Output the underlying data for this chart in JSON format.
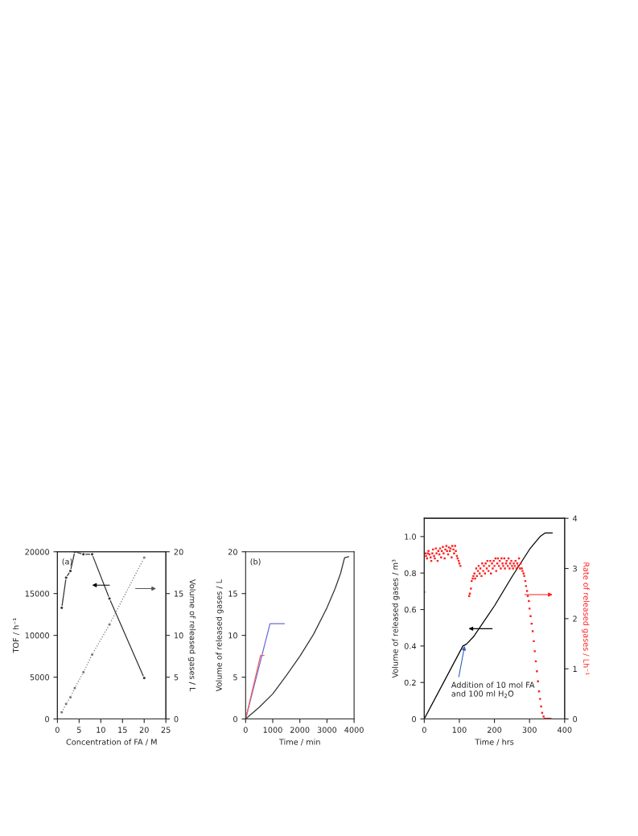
{
  "chart_data": [
    {
      "type": "line",
      "annotations": [
        "(a)"
      ],
      "xlabel": "Concentration of FA / M",
      "ylabel": "TOF / h⁻¹",
      "y2label": "Volume of released gases / L",
      "xlim": [
        0,
        25
      ],
      "xticks": [
        0,
        5,
        10,
        15,
        20,
        25
      ],
      "ylim": [
        0,
        20000
      ],
      "yticks": [
        0,
        5000,
        10000,
        15000,
        20000
      ],
      "y2lim": [
        0,
        20
      ],
      "y2ticks": [
        0,
        5,
        10,
        15,
        20
      ],
      "grid": false,
      "legend": false,
      "series": [
        {
          "x": [
            1,
            2,
            3,
            4,
            6,
            8,
            12,
            20
          ],
          "values": [
            13300,
            16900,
            17700,
            20000,
            19700,
            19700,
            14400,
            4900
          ],
          "color": "#333333",
          "marker": "circle",
          "line_style": "solid"
        },
        {
          "x": [
            1,
            2,
            3,
            4,
            6,
            8,
            12,
            20
          ],
          "values": [
            0.8,
            1.8,
            2.6,
            3.7,
            5.6,
            7.7,
            11.3,
            19.3
          ],
          "color": "#777777",
          "marker": "circle",
          "line_style": "dotted",
          "axis": "y2"
        }
      ]
    },
    {
      "type": "line",
      "annotations": [
        "(b)"
      ],
      "xlabel": "Time / min",
      "ylabel": "Volume of released gases / L",
      "xlim": [
        0,
        4000
      ],
      "xticks": [
        0,
        1000,
        2000,
        3000,
        4000
      ],
      "ylim": [
        0,
        20
      ],
      "yticks": [
        0,
        5,
        10,
        15,
        20
      ],
      "grid": false,
      "legend": false,
      "series": [
        {
          "x": [
            0,
            500,
            1000,
            1500,
            2000,
            2500,
            3000,
            3300,
            3500,
            3650,
            3800
          ],
          "values": [
            0,
            1.4,
            3.0,
            5.2,
            7.5,
            10.1,
            13.3,
            15.6,
            17.4,
            19.3,
            19.4
          ],
          "color": "#333333"
        },
        {
          "x": [
            0,
            900,
            1430
          ],
          "values": [
            0,
            11.4,
            11.4
          ],
          "color": "#6a6ad8"
        },
        {
          "x": [
            0,
            550,
            680
          ],
          "values": [
            0,
            7.6,
            7.6
          ],
          "color": "#f06060"
        }
      ]
    },
    {
      "type": "line",
      "annotations": [
        {
          "text": "Addition of 10 mol FA\nand 100 ml H$_{2}$O",
          "x": 115,
          "y": 0.4
        }
      ],
      "xlabel": "Time / hrs",
      "ylabel": "Volume of released gases / m³",
      "y2label": "Rate of released gases / Lh⁻¹",
      "xlim": [
        0,
        400
      ],
      "xticks": [
        0,
        100,
        200,
        300,
        400
      ],
      "ylim": [
        0,
        1.1
      ],
      "yticks": [
        0,
        0.2,
        0.4,
        0.6,
        0.8,
        {
          "value": 1.0,
          "label": "1.0"
        }
      ],
      "y2lim": [
        0,
        4
      ],
      "y2ticks": [
        0,
        1,
        2,
        3,
        4
      ],
      "grid": false,
      "legend": false,
      "series": [
        {
          "x": [
            0,
            110,
            120,
            140,
            200,
            250,
            300,
            330,
            345,
            365
          ],
          "values": [
            0,
            0.4,
            0.41,
            0.45,
            0.62,
            0.78,
            0.93,
            1.0,
            1.02,
            1.02
          ],
          "color": "#000000"
        },
        {
          "type": "scatter",
          "axis": "y2",
          "color": "#ff2020",
          "marker": "square",
          "x": [
            0,
            3,
            5,
            8,
            10,
            12,
            15,
            18,
            20,
            23,
            25,
            28,
            30,
            33,
            35,
            38,
            40,
            43,
            45,
            48,
            50,
            53,
            55,
            58,
            60,
            63,
            65,
            68,
            70,
            73,
            75,
            78,
            80,
            83,
            85,
            88,
            90,
            93,
            95,
            98,
            100,
            103,
            128,
            130,
            133,
            135,
            138,
            140,
            143,
            145,
            148,
            150,
            153,
            155,
            158,
            160,
            163,
            165,
            168,
            170,
            173,
            175,
            178,
            180,
            183,
            185,
            188,
            190,
            193,
            195,
            198,
            200,
            203,
            205,
            208,
            210,
            213,
            215,
            218,
            220,
            223,
            225,
            228,
            230,
            233,
            235,
            238,
            240,
            243,
            245,
            248,
            250,
            253,
            255,
            258,
            260,
            263,
            265,
            268,
            270,
            273,
            275,
            278,
            280,
            283,
            285,
            288,
            290,
            293,
            295,
            298,
            300,
            303,
            306,
            309,
            312,
            315,
            318,
            321,
            324,
            327,
            330,
            333,
            336,
            340,
            343,
            346,
            350,
            353,
            356,
            360
          ],
          "values": [
            2.53,
            3.3,
            3.25,
            3.2,
            3.3,
            3.35,
            3.28,
            3.22,
            3.15,
            3.3,
            3.38,
            3.25,
            3.2,
            3.4,
            3.3,
            3.15,
            3.35,
            3.28,
            3.4,
            3.22,
            3.35,
            3.43,
            3.3,
            3.2,
            3.38,
            3.45,
            3.35,
            3.28,
            3.42,
            3.35,
            3.4,
            3.22,
            3.45,
            3.38,
            3.3,
            3.45,
            3.35,
            3.25,
            3.2,
            3.15,
            3.1,
            3.05,
            2.45,
            2.5,
            2.6,
            2.75,
            2.8,
            2.85,
            2.9,
            2.8,
            3.0,
            2.85,
            2.95,
            3.05,
            2.9,
            3.0,
            2.85,
            3.1,
            2.95,
            3.05,
            2.9,
            3.1,
            3.0,
            3.15,
            2.95,
            3.05,
            3.15,
            2.9,
            3.1,
            3.0,
            3.15,
            3.05,
            3.2,
            2.95,
            3.1,
            3.2,
            3.05,
            3.15,
            3.0,
            3.2,
            3.1,
            3.05,
            3.2,
            3.0,
            3.1,
            3.15,
            3.05,
            3.2,
            3.0,
            3.1,
            3.15,
            3.05,
            3.0,
            3.1,
            3.05,
            3.15,
            3.0,
            3.1,
            3.05,
            3.2,
            3.0,
            3.1,
            3.0,
            2.95,
            2.9,
            2.85,
            2.75,
            2.65,
            2.55,
            2.45,
            2.35,
            2.2,
            2.05,
            1.9,
            1.75,
            1.55,
            1.35,
            1.15,
            0.95,
            0.75,
            0.55,
            0.4,
            0.25,
            0.12,
            0.05,
            0,
            0,
            0,
            0,
            0,
            0
          ]
        }
      ]
    }
  ]
}
